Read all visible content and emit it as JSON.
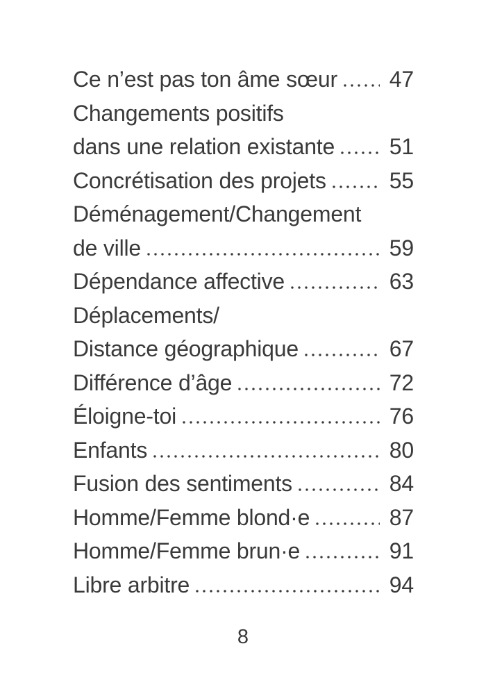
{
  "page": {
    "footer_page_number": "8",
    "text_color": "#3a3a3a",
    "background_color": "#ffffff"
  },
  "toc": {
    "entries": [
      {
        "lines": [
          "Ce n’est pas ton âme sœur"
        ],
        "page": "47"
      },
      {
        "lines": [
          "Changements positifs",
          "dans une relation existante"
        ],
        "page": "51"
      },
      {
        "lines": [
          "Concrétisation des projets"
        ],
        "page": "55"
      },
      {
        "lines": [
          "Déménagement/Changement",
          "de ville"
        ],
        "page": "59"
      },
      {
        "lines": [
          "Dépendance affective"
        ],
        "page": "63"
      },
      {
        "lines": [
          "Déplacements/",
          "Distance géographique"
        ],
        "page": "67"
      },
      {
        "lines": [
          "Différence d’âge"
        ],
        "page": "72"
      },
      {
        "lines": [
          "Éloigne-toi"
        ],
        "page": "76"
      },
      {
        "lines": [
          "Enfants"
        ],
        "page": "80"
      },
      {
        "lines": [
          "Fusion des sentiments"
        ],
        "page": "84"
      },
      {
        "lines": [
          "Homme/Femme blond·e"
        ],
        "page": "87"
      },
      {
        "lines": [
          "Homme/Femme brun·e"
        ],
        "page": "91"
      },
      {
        "lines": [
          "Libre arbitre"
        ],
        "page": "94"
      }
    ]
  }
}
